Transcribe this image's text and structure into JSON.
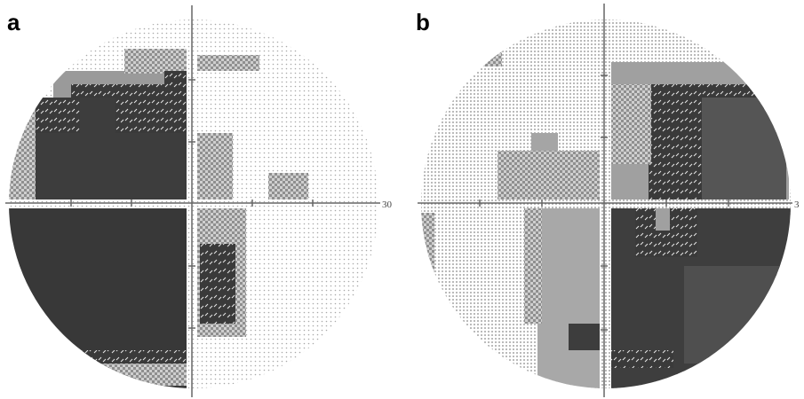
{
  "panels": [
    {
      "letter": "a",
      "scale_label": "30"
    },
    {
      "letter": "b",
      "scale_label": "3"
    }
  ],
  "colors": {
    "background": "#ffffff",
    "axis": "#666666",
    "dense_defect": "#3a3a3a",
    "moderate_defect": "#7f7f7f",
    "mild_defect": "#b8b8b8",
    "normal_dots": "#c9c9c9"
  }
}
